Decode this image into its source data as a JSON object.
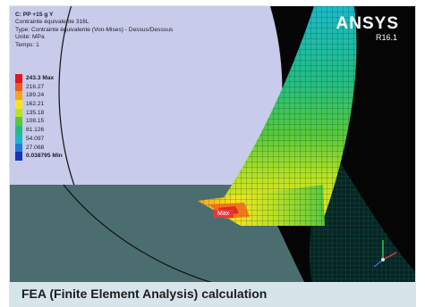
{
  "overlay": {
    "title": "C: PP +15 g Y",
    "line1": "Contrainte équivalente 316L",
    "line2": "Type: Contrainte équivalente (Von-Mises) - Dessus/Dessous",
    "line3": "Unité: MPa",
    "line4": "Temps: 1"
  },
  "legend": {
    "items": [
      {
        "label": "243.3 Max",
        "color": "#e1161b",
        "bold": true
      },
      {
        "label": "216.27",
        "color": "#f05a1e",
        "bold": false
      },
      {
        "label": "189.24",
        "color": "#f9a51d",
        "bold": false
      },
      {
        "label": "162.21",
        "color": "#f5e41c",
        "bold": false
      },
      {
        "label": "135.18",
        "color": "#b9e123",
        "bold": false
      },
      {
        "label": "108.15",
        "color": "#57c93a",
        "bold": false
      },
      {
        "label": "81.126",
        "color": "#22bd82",
        "bold": false
      },
      {
        "label": "54.097",
        "color": "#1ab9c9",
        "bold": false
      },
      {
        "label": "27.068",
        "color": "#1a7ed8",
        "bold": false
      },
      {
        "label": "0.038795 Min",
        "color": "#1434b8",
        "bold": true
      }
    ]
  },
  "brand": {
    "logo": "ANSYS",
    "version": "R16.1"
  },
  "marker": {
    "label": "Max"
  },
  "caption": {
    "text": "FEA (Finite Element Analysis) calculation"
  },
  "colors": {
    "background": "#4b6d70",
    "panel": "#c9cbea",
    "caption_bar": "#d5e5ea"
  }
}
